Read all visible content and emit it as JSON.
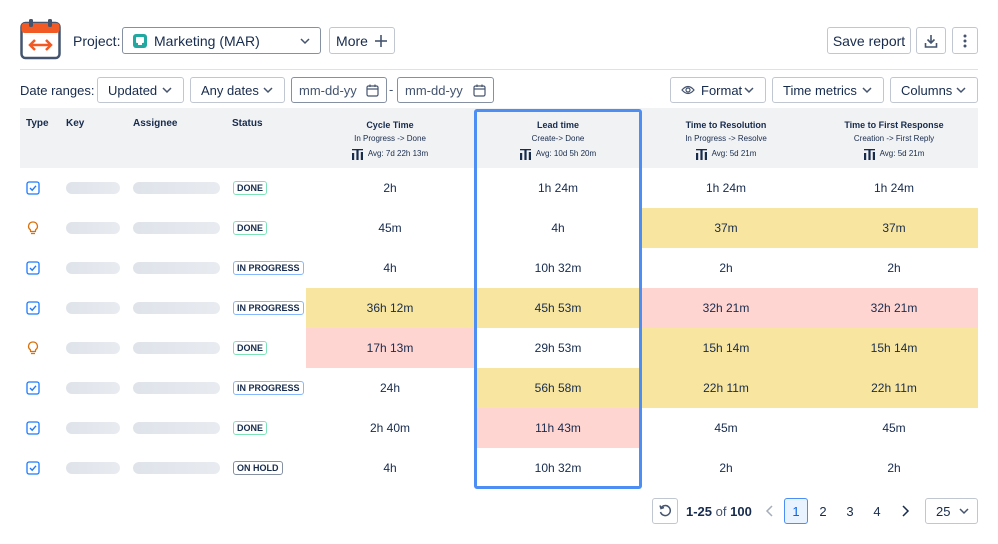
{
  "toolbar": {
    "project_label": "Project:",
    "project_value": "Marketing (MAR)",
    "more_label": "More",
    "save_report_label": "Save report"
  },
  "filters": {
    "date_ranges_label": "Date ranges:",
    "updated_label": "Updated",
    "any_dates_label": "Any dates",
    "date_from_placeholder": "mm-dd-yy",
    "date_to_placeholder": "mm-dd-yy",
    "date_separator": "-",
    "format_label": "Format",
    "time_metrics_label": "Time metrics",
    "columns_label": "Columns"
  },
  "table": {
    "headers": {
      "type": "Type",
      "key": "Key",
      "assignee": "Assignee",
      "status": "Status"
    },
    "metrics": [
      {
        "title": "Cycle Time",
        "sub": "In Progress -> Done",
        "avg": "Avg: 7d 22h 13m"
      },
      {
        "title": "Lead time",
        "sub": "Create-> Done",
        "avg": "Avg: 10d 5h 20m"
      },
      {
        "title": "Time to Resolution",
        "sub": "In Progress -> Resolve",
        "avg": "Avg: 5d 21m"
      },
      {
        "title": "Time to First Response",
        "sub": "Creation -> First Reply",
        "avg": "Avg: 5d 21m"
      }
    ],
    "rows": [
      {
        "type": "task",
        "status": "DONE",
        "status_kind": "done",
        "values": [
          "2h",
          "1h 24m",
          "1h 24m",
          "1h 24m"
        ],
        "colors": [
          "",
          "",
          "",
          ""
        ]
      },
      {
        "type": "idea",
        "status": "DONE",
        "status_kind": "done",
        "values": [
          "45m",
          "4h",
          "37m",
          "37m"
        ],
        "colors": [
          "",
          "",
          "yellow",
          "yellow"
        ]
      },
      {
        "type": "task",
        "status": "IN PROGRESS",
        "status_kind": "progress",
        "values": [
          "4h",
          "10h 32m",
          "2h",
          "2h"
        ],
        "colors": [
          "",
          "",
          "",
          ""
        ]
      },
      {
        "type": "task",
        "status": "IN PROGRESS",
        "status_kind": "progress",
        "values": [
          "36h 12m",
          "45h 53m",
          "32h 21m",
          "32h 21m"
        ],
        "colors": [
          "yellow",
          "yellow",
          "red",
          "red"
        ]
      },
      {
        "type": "idea",
        "status": "DONE",
        "status_kind": "done",
        "values": [
          "17h 13m",
          "29h 53m",
          "15h 14m",
          "15h 14m"
        ],
        "colors": [
          "red",
          "",
          "yellow",
          "yellow"
        ]
      },
      {
        "type": "task",
        "status": "IN PROGRESS",
        "status_kind": "progress",
        "values": [
          "24h",
          "56h 58m",
          "22h 11m",
          "22h 11m"
        ],
        "colors": [
          "",
          "yellow",
          "yellow",
          "yellow"
        ]
      },
      {
        "type": "task",
        "status": "DONE",
        "status_kind": "done",
        "values": [
          "2h 40m",
          "11h 43m",
          "45m",
          "45m"
        ],
        "colors": [
          "",
          "red",
          "",
          ""
        ]
      },
      {
        "type": "task",
        "status": "ON HOLD",
        "status_kind": "hold",
        "values": [
          "4h",
          "10h 32m",
          "2h",
          "2h"
        ],
        "colors": [
          "",
          "",
          "",
          ""
        ]
      }
    ]
  },
  "pagination": {
    "range": "1-25",
    "of_label": "of",
    "total": "100",
    "pages": [
      "1",
      "2",
      "3",
      "4"
    ],
    "current_page": "1",
    "page_size": "25"
  },
  "colors": {
    "accent": "#4c8ef3",
    "yellow": "#f8e6a0",
    "red": "#ffd5d2",
    "task_icon": "#1d7afc",
    "idea_icon": "#d97008"
  },
  "icons": {
    "app_logo": "calendar-arrows-icon",
    "more": "plus-icon",
    "download": "download-icon",
    "kebab": "more-vertical-icon",
    "format": "eye-icon",
    "date": "calendar-icon",
    "avg": "bar-chart-icon",
    "task": "checkbox-icon",
    "idea": "lightbulb-icon",
    "reset": "reset-icon"
  }
}
